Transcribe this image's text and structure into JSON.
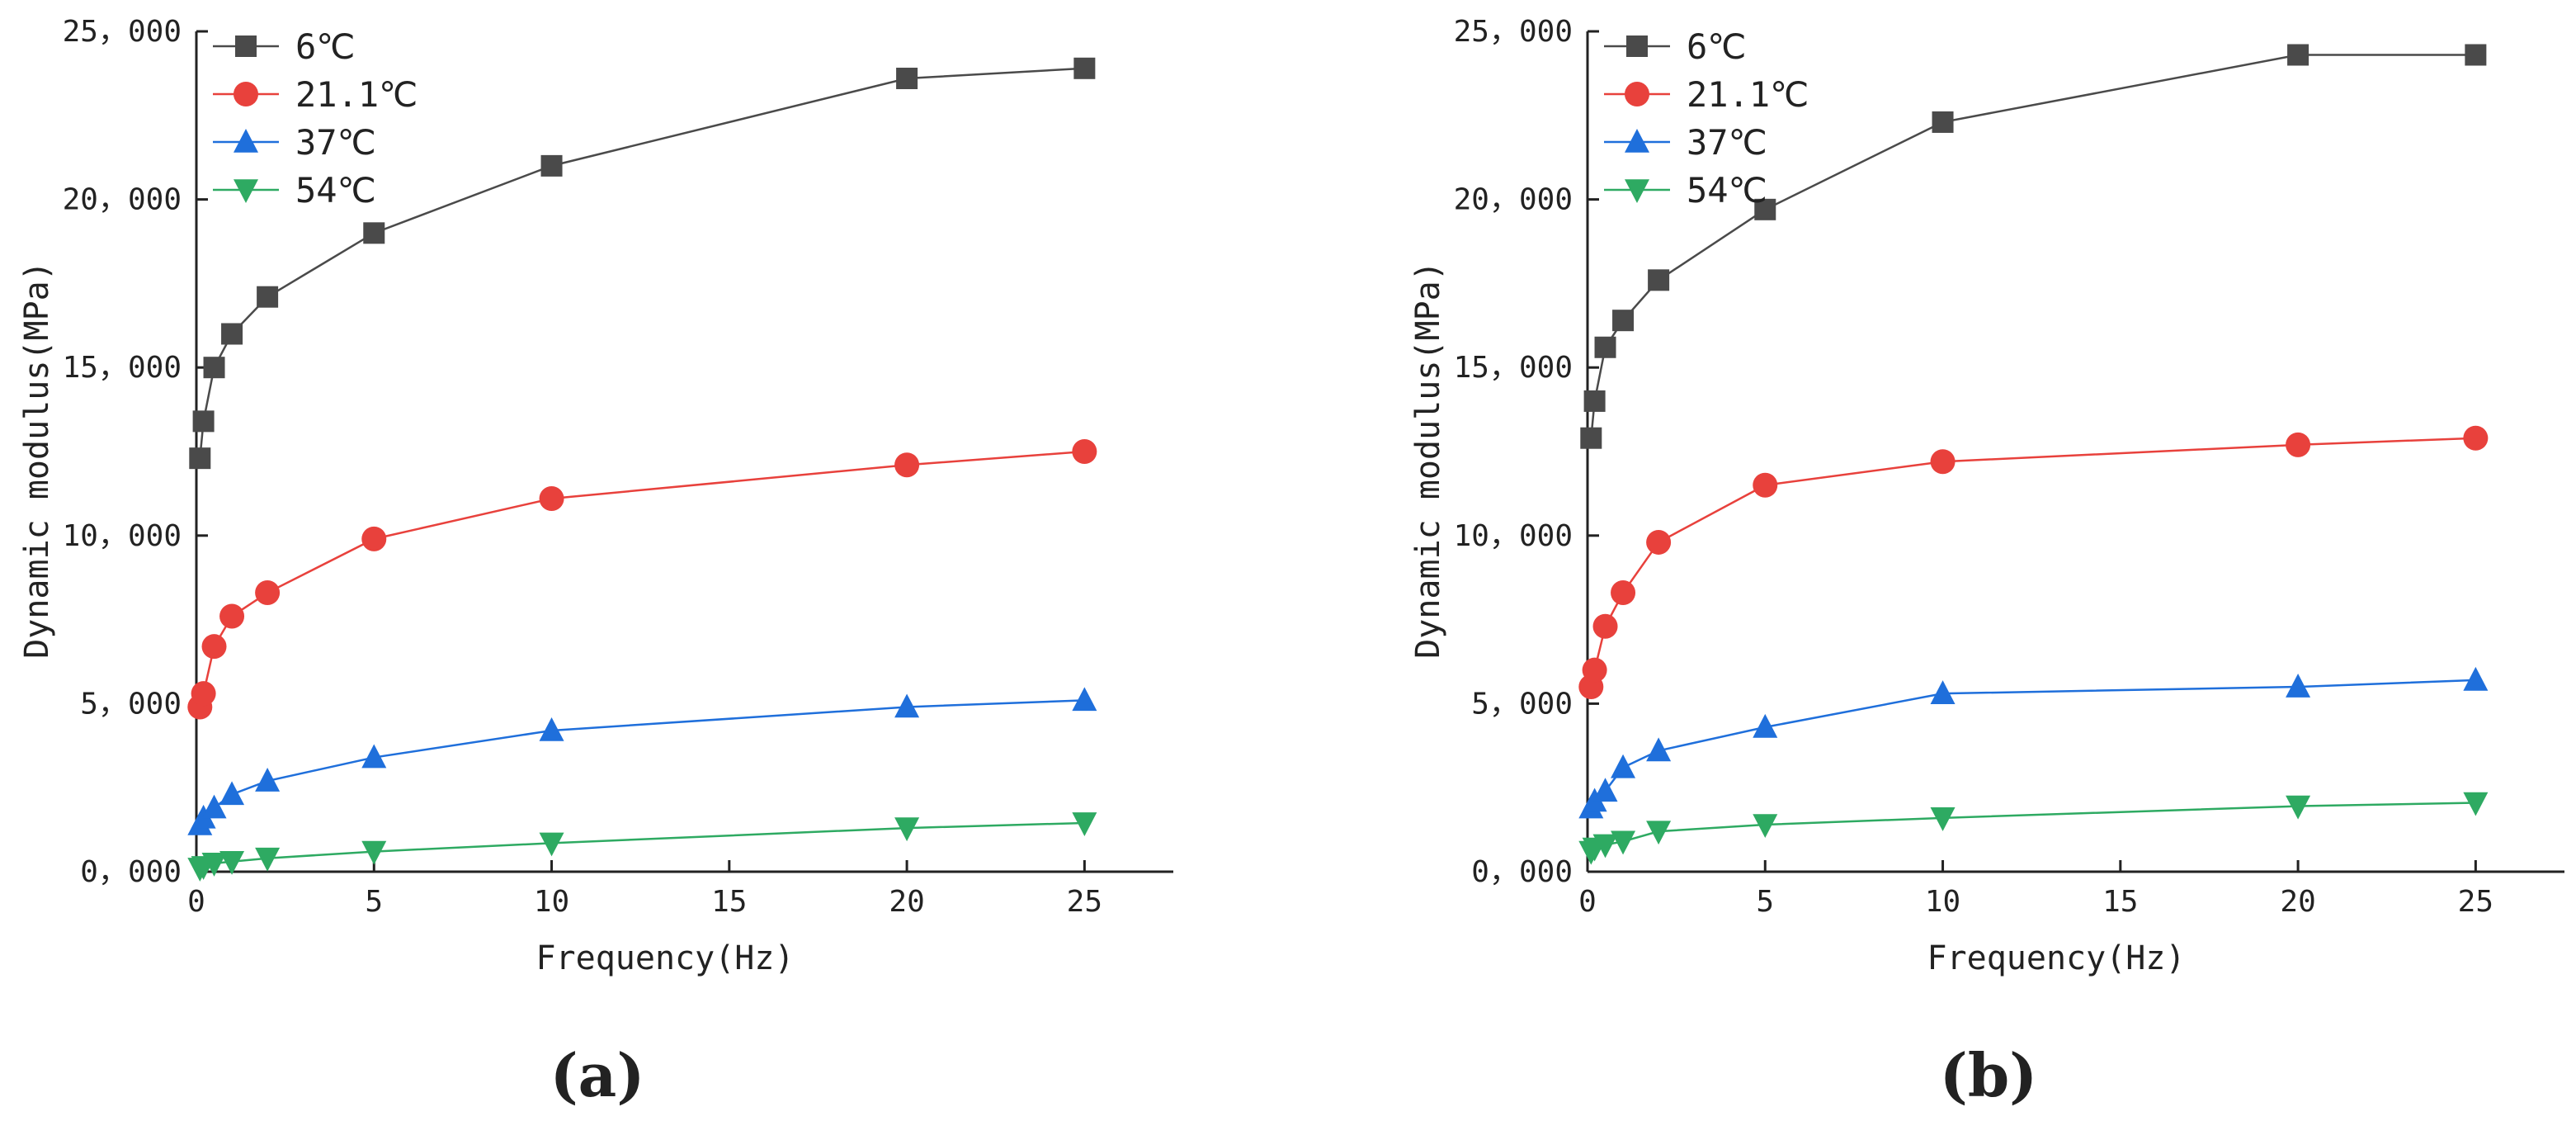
{
  "figure": {
    "panel_labels": [
      "(a)",
      "(b)"
    ]
  },
  "colors": {
    "6C": "#4a4a4a",
    "21C": "#e8413c",
    "37C": "#1f6fdb",
    "54C": "#2eaa62",
    "axis": "#222222"
  },
  "chart_data": [
    {
      "panel": "(a)",
      "type": "line",
      "title": "",
      "xlabel": "Frequency(Hz)",
      "ylabel": "Dynamic modulus(MPa)",
      "xlim": [
        0,
        27.5
      ],
      "ylim": [
        0,
        25000
      ],
      "xticks": [
        0,
        5,
        10,
        15,
        20,
        25
      ],
      "xtick_labels": [
        "0",
        "5",
        "10",
        "15",
        "20",
        "25"
      ],
      "yticks": [
        0,
        5000,
        10000,
        15000,
        20000,
        25000
      ],
      "ytick_labels": [
        "0，000",
        "5，000",
        "10，000",
        "15，000",
        "20，000",
        "25，000"
      ],
      "legend_position": "top-left",
      "x": [
        0.1,
        0.2,
        0.5,
        1,
        2,
        5,
        10,
        20,
        25
      ],
      "series": [
        {
          "name": "6℃",
          "marker": "square",
          "color_key": "6C",
          "values": [
            12300,
            13400,
            15000,
            16000,
            17100,
            19000,
            21000,
            23600,
            23900
          ]
        },
        {
          "name": "21.1℃",
          "marker": "circle",
          "color_key": "21C",
          "values": [
            4900,
            5300,
            6700,
            7600,
            8300,
            9900,
            11100,
            12100,
            12500
          ]
        },
        {
          "name": "37℃",
          "marker": "triangle-up",
          "color_key": "37C",
          "values": [
            1400,
            1600,
            1900,
            2300,
            2700,
            3400,
            4200,
            4900,
            5100
          ]
        },
        {
          "name": "54℃",
          "marker": "triangle-down",
          "color_key": "54C",
          "values": [
            100,
            150,
            250,
            300,
            400,
            600,
            850,
            1300,
            1450
          ]
        }
      ]
    },
    {
      "panel": "(b)",
      "type": "line",
      "title": "",
      "xlabel": "Frequency(Hz)",
      "ylabel": "Dynamic modulus(MPa)",
      "xlim": [
        0,
        27.5
      ],
      "ylim": [
        0,
        25000
      ],
      "xticks": [
        0,
        5,
        10,
        15,
        20,
        25
      ],
      "xtick_labels": [
        "0",
        "5",
        "10",
        "15",
        "20",
        "25"
      ],
      "yticks": [
        0,
        5000,
        10000,
        15000,
        20000,
        25000
      ],
      "ytick_labels": [
        "0，000",
        "5，000",
        "10，000",
        "15，000",
        "20，000",
        "25，000"
      ],
      "legend_position": "top-left",
      "x": [
        0.1,
        0.2,
        0.5,
        1,
        2,
        5,
        10,
        20,
        25
      ],
      "series": [
        {
          "name": "6℃",
          "marker": "square",
          "color_key": "6C",
          "values": [
            12900,
            14000,
            15600,
            16400,
            17600,
            19700,
            22300,
            24300,
            24300
          ]
        },
        {
          "name": "21.1℃",
          "marker": "circle",
          "color_key": "21C",
          "values": [
            5500,
            6000,
            7300,
            8300,
            9800,
            11500,
            12200,
            12700,
            12900
          ]
        },
        {
          "name": "37℃",
          "marker": "triangle-up",
          "color_key": "37C",
          "values": [
            1900,
            2100,
            2400,
            3100,
            3600,
            4300,
            5300,
            5500,
            5700
          ]
        },
        {
          "name": "54℃",
          "marker": "triangle-down",
          "color_key": "54C",
          "values": [
            600,
            700,
            800,
            900,
            1200,
            1400,
            1600,
            1950,
            2050
          ]
        }
      ]
    }
  ]
}
